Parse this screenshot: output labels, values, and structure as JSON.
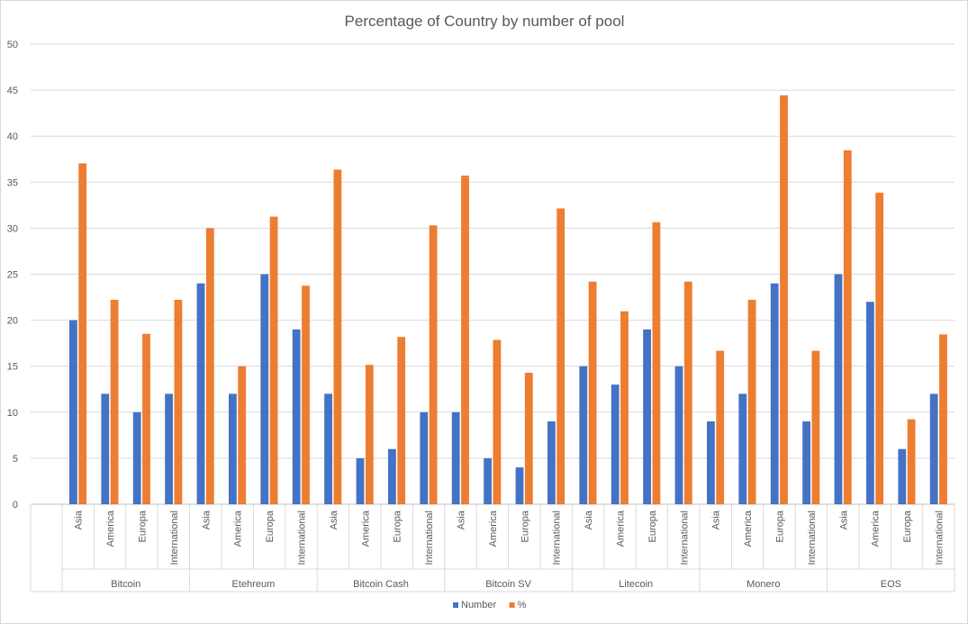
{
  "chart_data": {
    "type": "bar",
    "title": "Percentage of Country by number of pool",
    "groups": [
      "Bitcoin",
      "Etehreum",
      "Bitcoin Cash",
      "Bitcoin SV",
      "Litecoin",
      "Monero",
      "EOS"
    ],
    "subcategories": [
      "Asia",
      "America",
      "Europa",
      "International"
    ],
    "series": [
      {
        "name": "Number",
        "color": "#4472C4",
        "values": [
          [
            20,
            12,
            10,
            12
          ],
          [
            24,
            12,
            25,
            19
          ],
          [
            12,
            5,
            6,
            10
          ],
          [
            10,
            5,
            4,
            9
          ],
          [
            15,
            13,
            19,
            15
          ],
          [
            9,
            12,
            24,
            9
          ],
          [
            25,
            22,
            6,
            12
          ]
        ]
      },
      {
        "name": "%",
        "color": "#ED7D31",
        "values": [
          [
            37.04,
            22.22,
            18.52,
            22.22
          ],
          [
            30.0,
            15.0,
            31.25,
            23.75
          ],
          [
            36.36,
            15.15,
            18.18,
            30.3
          ],
          [
            35.71,
            17.86,
            14.29,
            32.14
          ],
          [
            24.19,
            20.97,
            30.65,
            24.19
          ],
          [
            16.67,
            22.22,
            44.44,
            16.67
          ],
          [
            38.46,
            33.85,
            9.23,
            18.46
          ]
        ]
      }
    ],
    "ylim": [
      0,
      50
    ],
    "yticks": [
      0,
      5,
      10,
      15,
      20,
      25,
      30,
      35,
      40,
      45,
      50
    ],
    "grid": true,
    "legend": "bottom"
  }
}
